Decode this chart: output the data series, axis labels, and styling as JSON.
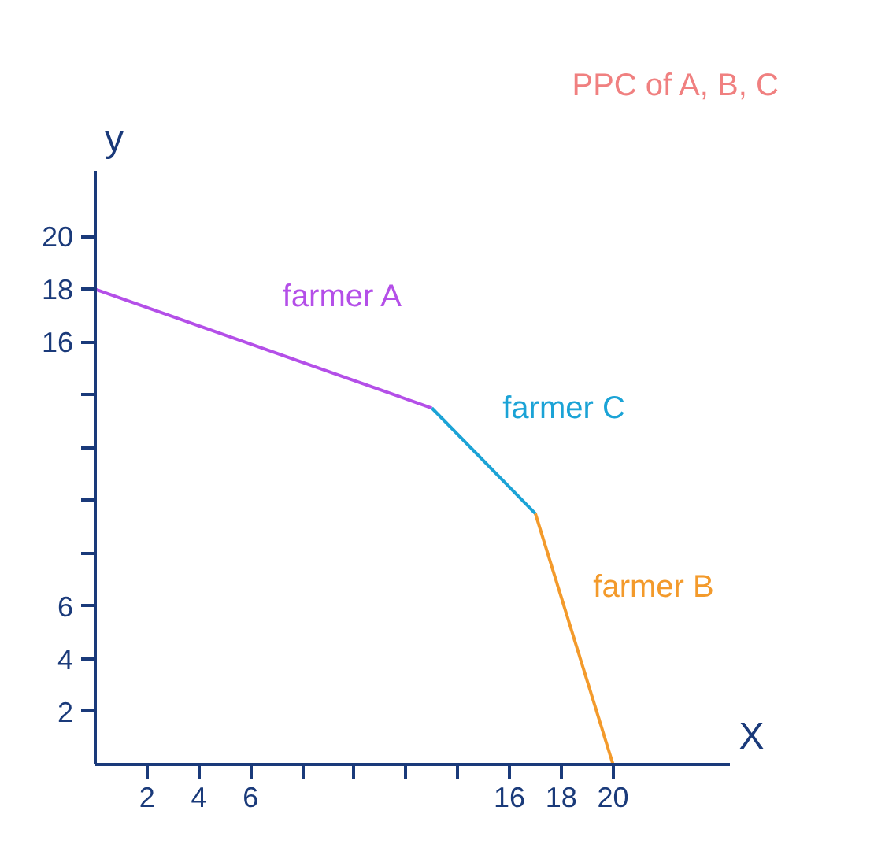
{
  "chart_data": {
    "type": "line",
    "title": "PPC of A, B, C",
    "xlabel": "X",
    "ylabel": "y",
    "series": [
      {
        "name": "farmer A",
        "color": "#b44fe8",
        "x": [
          0,
          13
        ],
        "values": [
          18,
          13.5
        ]
      },
      {
        "name": "farmer C",
        "color": "#1ba3d6",
        "x": [
          13,
          17
        ],
        "values": [
          13.5,
          9.5
        ]
      },
      {
        "name": "farmer B",
        "color": "#f39a2b",
        "x": [
          17,
          20
        ],
        "values": [
          9.5,
          0
        ]
      }
    ],
    "xlim": [
      0,
      24.5
    ],
    "ylim": [
      0,
      22.5
    ],
    "xticks": [
      2,
      4,
      6,
      {
        "value": 8,
        "label": null
      },
      {
        "value": 10,
        "label": null
      },
      {
        "value": 12,
        "label": null
      },
      {
        "value": 14,
        "label": null
      },
      16,
      18,
      20
    ],
    "yticks": [
      2,
      4,
      6,
      {
        "value": 8,
        "label": null
      },
      {
        "value": 10,
        "label": null
      },
      {
        "value": 12,
        "label": null
      },
      {
        "value": 14,
        "label": null
      },
      16,
      18,
      20
    ],
    "grid": false,
    "marker": "none",
    "line_style": "solid"
  }
}
